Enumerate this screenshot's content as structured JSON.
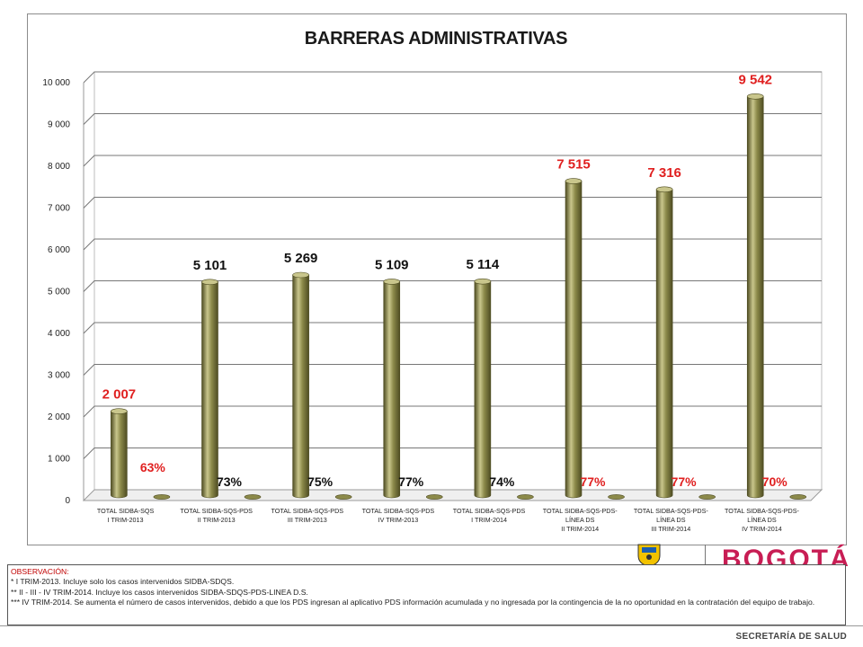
{
  "chart_data": {
    "type": "bar",
    "title": "BARRERAS ADMINISTRATIVAS",
    "ylim": [
      0,
      10000
    ],
    "y_ticks": [
      "0",
      "1 000",
      "2 000",
      "3 000",
      "4 000",
      "5 000",
      "6 000",
      "7 000",
      "8 000",
      "9 000",
      "10 000"
    ],
    "grid": true,
    "legend": "none",
    "categories": [
      [
        "TOTAL SIDBA-SQS",
        "I TRIM-2013"
      ],
      [
        "TOTAL SIDBA-SQS-PDS",
        "II TRIM-2013"
      ],
      [
        "TOTAL SIDBA-SQS-PDS",
        "III TRIM-2013"
      ],
      [
        "TOTAL SIDBA-SQS-PDS",
        "IV TRIM-2013"
      ],
      [
        "TOTAL SIDBA-SQS-PDS",
        "I TRIM-2014"
      ],
      [
        "TOTAL SIDBA-SQS-PDS-",
        "LÍNEA DS",
        "II TRIM-2014"
      ],
      [
        "TOTAL SIDBA-SQS-PDS-",
        "LÍNEA DS",
        "III TRIM-2014"
      ],
      [
        "TOTAL SIDBA-SQS-PDS-",
        "LÍNEA DS",
        "IV TRIM-2014"
      ]
    ],
    "values": [
      2007,
      5101,
      5269,
      5109,
      5114,
      7515,
      7316,
      9542
    ],
    "value_labels": [
      "2 007",
      "5 101",
      "5 269",
      "5 109",
      "5 114",
      "7 515",
      "7 316",
      "9 542"
    ],
    "value_label_colors": [
      "#e02020",
      "#111111",
      "#111111",
      "#111111",
      "#111111",
      "#e02020",
      "#e02020",
      "#e02020"
    ],
    "percent_labels": [
      "63%",
      "73%",
      "75%",
      "77%",
      "74%",
      "77%",
      "77%",
      "70%"
    ],
    "percent_label_colors": [
      "#e02020",
      "#111111",
      "#111111",
      "#111111",
      "#111111",
      "#e02020",
      "#e02020",
      "#e02020"
    ],
    "bar_color": "#8c8a4a",
    "bar_dark": "#4e4c22",
    "bar_light": "#c9c68c"
  },
  "observation": {
    "title": "OBSERVACIÓN:",
    "lines": [
      "* I TRIM-2013. Incluye solo los casos intervenidos SIDBA-SDQS.",
      "** II - III - IV TRIM-2014. Incluye los casos intervenidos SIDBA-SDQS-PDS-LINEA D.S.",
      "*** IV TRIM-2014. Se aumenta el número de casos intervenidos, debido a que los PDS ingresan al aplicativo PDS información acumulada y no ingresada por la contingencia de la no oportunidad en la contratación del equipo de trabajo."
    ]
  },
  "footer": {
    "logo_text": "BOGOTÁ",
    "department": "SECRETARÍA DE SALUD"
  }
}
